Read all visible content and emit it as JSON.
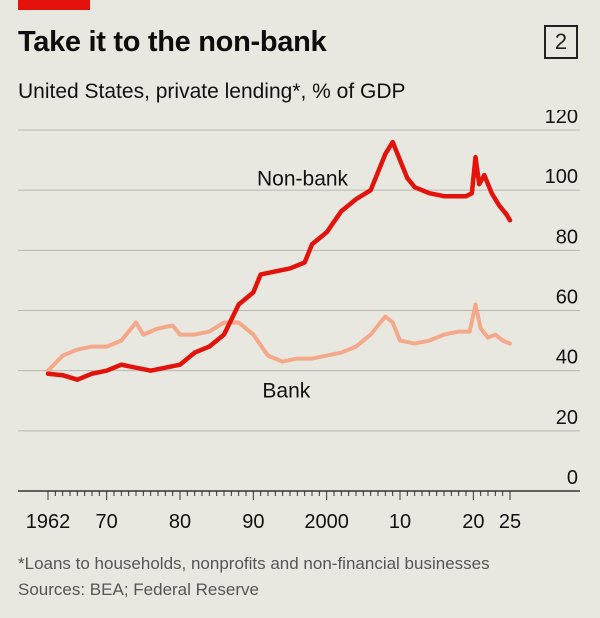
{
  "header": {
    "title": "Take it to the non-bank",
    "chart_number": "2",
    "subtitle": "United States, private lending*, % of GDP"
  },
  "footer": {
    "footnote": "*Loans to households, nonprofits and non-financial businesses",
    "source": "Sources: BEA; Federal Reserve"
  },
  "colors": {
    "non_bank": "#e3120b",
    "bank": "#f4a98a",
    "accent_bar": "#e3120b",
    "gridline": "#b8b7b0",
    "background": "#e9e8e0"
  },
  "chart_data": {
    "type": "line",
    "title": "Take it to the non-bank",
    "subtitle": "United States, private lending*, % of GDP",
    "xlabel": "",
    "ylabel": "",
    "xlim": [
      1962,
      2025
    ],
    "ylim": [
      0,
      120
    ],
    "y_ticks": [
      0,
      20,
      40,
      60,
      80,
      100,
      120
    ],
    "y_tick_labels": [
      "0",
      "20",
      "40",
      "60",
      "80",
      "100",
      "120"
    ],
    "x_ticks": [
      1962,
      1970,
      1980,
      1990,
      2000,
      2010,
      2020,
      2025
    ],
    "x_tick_labels": [
      "1962",
      "70",
      "80",
      "90",
      "2000",
      "10",
      "20",
      "25"
    ],
    "grid": true,
    "series": [
      {
        "name": "Non-bank",
        "points": [
          [
            1962,
            39
          ],
          [
            1964,
            38.5
          ],
          [
            1966,
            37
          ],
          [
            1968,
            39
          ],
          [
            1970,
            40
          ],
          [
            1972,
            42
          ],
          [
            1974,
            41
          ],
          [
            1976,
            40
          ],
          [
            1978,
            41
          ],
          [
            1980,
            42
          ],
          [
            1982,
            46
          ],
          [
            1984,
            48
          ],
          [
            1986,
            52
          ],
          [
            1988,
            62
          ],
          [
            1990,
            66
          ],
          [
            1991,
            72
          ],
          [
            1993,
            73
          ],
          [
            1995,
            74
          ],
          [
            1997,
            76
          ],
          [
            1998,
            82
          ],
          [
            2000,
            86
          ],
          [
            2002,
            93
          ],
          [
            2004,
            97
          ],
          [
            2006,
            100
          ],
          [
            2007,
            106
          ],
          [
            2008,
            112
          ],
          [
            2009,
            116
          ],
          [
            2010,
            110
          ],
          [
            2011,
            104
          ],
          [
            2012,
            101
          ],
          [
            2014,
            99
          ],
          [
            2016,
            98
          ],
          [
            2018,
            98
          ],
          [
            2019,
            98
          ],
          [
            2019.8,
            99
          ],
          [
            2020.3,
            111
          ],
          [
            2020.8,
            102
          ],
          [
            2021.5,
            105
          ],
          [
            2022.5,
            99
          ],
          [
            2023.5,
            95
          ],
          [
            2024.5,
            92
          ],
          [
            2025,
            90
          ]
        ]
      },
      {
        "name": "Bank",
        "points": [
          [
            1962,
            40
          ],
          [
            1964,
            45
          ],
          [
            1966,
            47
          ],
          [
            1968,
            48
          ],
          [
            1970,
            48
          ],
          [
            1972,
            50
          ],
          [
            1974,
            56
          ],
          [
            1975,
            52
          ],
          [
            1977,
            54
          ],
          [
            1979,
            55
          ],
          [
            1980,
            52
          ],
          [
            1982,
            52
          ],
          [
            1984,
            53
          ],
          [
            1986,
            56
          ],
          [
            1988,
            56
          ],
          [
            1990,
            52
          ],
          [
            1992,
            45
          ],
          [
            1994,
            43
          ],
          [
            1996,
            44
          ],
          [
            1998,
            44
          ],
          [
            2000,
            45
          ],
          [
            2002,
            46
          ],
          [
            2004,
            48
          ],
          [
            2006,
            52
          ],
          [
            2008,
            58
          ],
          [
            2009,
            56
          ],
          [
            2010,
            50
          ],
          [
            2012,
            49
          ],
          [
            2014,
            50
          ],
          [
            2016,
            52
          ],
          [
            2018,
            53
          ],
          [
            2019.5,
            53
          ],
          [
            2020.3,
            62
          ],
          [
            2021,
            54
          ],
          [
            2022,
            51
          ],
          [
            2023,
            52
          ],
          [
            2024,
            50
          ],
          [
            2025,
            49
          ]
        ]
      }
    ]
  }
}
